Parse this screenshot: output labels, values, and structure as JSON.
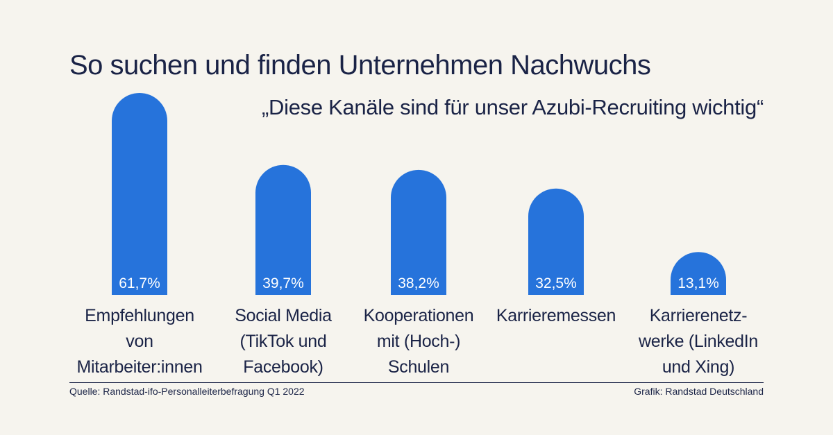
{
  "chart_data": {
    "type": "bar",
    "title": "So suchen und finden Unternehmen Nachwuchs",
    "subtitle": "„Diese Kanäle sind für unser Azubi-Recruiting wichtig“",
    "categories": [
      "Empfehlungen von Mitarbeiter:innen",
      "Social Media (TikTok und Facebook)",
      "Kooperationen mit (Hoch-) Schulen",
      "Karrieremessen",
      "Karrierenetzwerke (LinkedIn und Xing)"
    ],
    "category_display": [
      "Empfehlungen\nvon\nMitarbeiter:innen",
      "Social Media\n(TikTok und\nFacebook)",
      "Kooperationen\nmit (Hoch-)\nSchulen",
      "Karrieremessen",
      "Karrierenetz-\nwerke (LinkedIn\nund Xing)"
    ],
    "values": [
      61.7,
      39.7,
      38.2,
      32.5,
      13.1
    ],
    "value_labels": [
      "61,7%",
      "39,7%",
      "38,2%",
      "32,5%",
      "13,1%"
    ],
    "ylim": [
      0,
      70
    ],
    "grid": false,
    "legend": "none",
    "bar_color": "#2673db",
    "label_color": "#ffffff"
  },
  "footer": {
    "source": "Quelle: Randstad-ifo-Personalleiterbefragung Q1 2022",
    "credit": "Grafik: Randstad Deutschland"
  },
  "colors": {
    "background": "#f6f4ee",
    "text": "#1a2346",
    "accent": "#2673db"
  }
}
